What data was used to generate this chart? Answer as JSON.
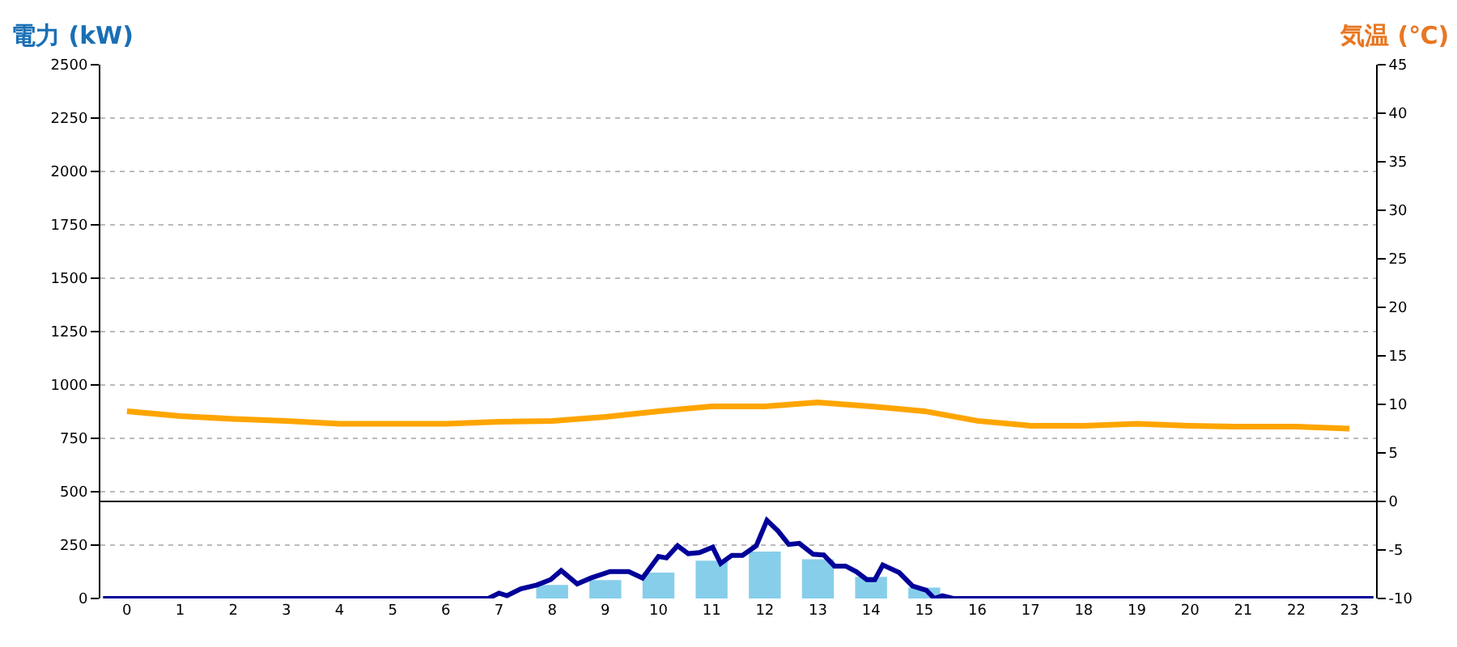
{
  "chart_data": {
    "type": "bar",
    "ylabel": "電力 (kW)",
    "y2label": "気温 (℃)",
    "x": [
      0,
      1,
      2,
      3,
      4,
      5,
      6,
      7,
      8,
      9,
      10,
      11,
      12,
      13,
      14,
      15,
      16,
      17,
      18,
      19,
      20,
      21,
      22,
      23
    ],
    "xlim": [
      -0.5,
      23.5
    ],
    "xticks": [
      0,
      1,
      2,
      3,
      4,
      5,
      6,
      7,
      8,
      9,
      10,
      11,
      12,
      13,
      14,
      15,
      16,
      17,
      18,
      19,
      20,
      21,
      22,
      23
    ],
    "ylim": [
      0,
      2500
    ],
    "yticks": [
      0,
      250,
      500,
      750,
      1000,
      1250,
      1500,
      1750,
      2000,
      2250,
      2500
    ],
    "y2lim": [
      -10,
      45
    ],
    "y2ticks": [
      -10,
      -5,
      0,
      5,
      10,
      15,
      20,
      25,
      30,
      35,
      40,
      45
    ],
    "grid": "y",
    "series": [
      {
        "color": "#87ceeb",
        "values": [
          0,
          0,
          0,
          0,
          0,
          0,
          0,
          0,
          63,
          86,
          121,
          177,
          220,
          184,
          101,
          51,
          0,
          0,
          0,
          0,
          0,
          0,
          0,
          0
        ]
      },
      {
        "type": "line",
        "color": "#000099",
        "x": [
          -0.45,
          6.8,
          7.0,
          7.15,
          7.41,
          7.71,
          7.97,
          8.17,
          8.47,
          8.73,
          9.09,
          9.44,
          9.7,
          10.0,
          10.15,
          10.36,
          10.56,
          10.77,
          11.02,
          11.17,
          11.38,
          11.58,
          11.84,
          12.04,
          12.25,
          12.45,
          12.65,
          12.91,
          13.11,
          13.31,
          13.52,
          13.72,
          13.92,
          14.07,
          14.22,
          14.53,
          14.78,
          15.04,
          15.19,
          15.34,
          15.54,
          23.45
        ],
        "values": [
          0,
          0,
          25,
          13,
          45,
          63,
          88,
          131,
          68,
          96,
          126,
          126,
          96,
          197,
          190,
          247,
          210,
          215,
          240,
          164,
          202,
          202,
          247,
          366,
          316,
          253,
          258,
          207,
          204,
          152,
          152,
          126,
          88,
          88,
          157,
          121,
          58,
          38,
          0,
          13,
          0,
          0
        ]
      },
      {
        "type": "line",
        "axis": "y2",
        "color": "#ffa500",
        "values": [
          9.3,
          8.8,
          8.5,
          8.3,
          8.0,
          8.0,
          8.0,
          8.2,
          8.3,
          8.7,
          9.3,
          9.8,
          9.8,
          10.2,
          9.8,
          9.3,
          8.3,
          7.8,
          7.8,
          8.0,
          7.8,
          7.7,
          7.7,
          7.5
        ]
      }
    ],
    "ref_lines": [
      {
        "axis": "y2",
        "value": 0,
        "color": "#000000"
      }
    ]
  }
}
